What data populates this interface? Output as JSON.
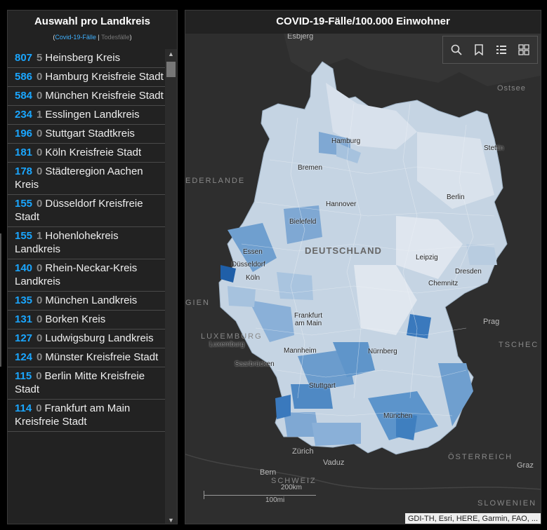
{
  "left_panel": {
    "title": "Auswahl pro Landkreis",
    "legend_open": "(",
    "legend_cases": "Covid-19-Fälle",
    "legend_sep": " | ",
    "legend_deaths": "Todesfälle",
    "legend_close": ")",
    "items": [
      {
        "cases": "807",
        "deaths": "5",
        "name": "Heinsberg Kreis"
      },
      {
        "cases": "586",
        "deaths": "0",
        "name": "Hamburg Kreisfreie Stadt"
      },
      {
        "cases": "584",
        "deaths": "0",
        "name": "München Kreisfreie Stadt"
      },
      {
        "cases": "234",
        "deaths": "1",
        "name": "Esslingen Landkreis"
      },
      {
        "cases": "196",
        "deaths": "0",
        "name": "Stuttgart Stadtkreis"
      },
      {
        "cases": "181",
        "deaths": "0",
        "name": "Köln Kreisfreie Stadt"
      },
      {
        "cases": "178",
        "deaths": "0",
        "name": "Städteregion Aachen Kreis"
      },
      {
        "cases": "155",
        "deaths": "0",
        "name": "Düsseldorf Kreisfreie Stadt"
      },
      {
        "cases": "155",
        "deaths": "1",
        "name": "Hohenlohekreis Landkreis"
      },
      {
        "cases": "140",
        "deaths": "0",
        "name": "Rhein-Neckar-Kreis Landkreis"
      },
      {
        "cases": "135",
        "deaths": "0",
        "name": "München Landkreis"
      },
      {
        "cases": "131",
        "deaths": "0",
        "name": "Borken Kreis"
      },
      {
        "cases": "127",
        "deaths": "0",
        "name": "Ludwigsburg Landkreis"
      },
      {
        "cases": "124",
        "deaths": "0",
        "name": "Münster Kreisfreie Stadt"
      },
      {
        "cases": "115",
        "deaths": "0",
        "name": "Berlin Mitte Kreisfreie Stadt"
      },
      {
        "cases": "114",
        "deaths": "0",
        "name": "Frankfurt am Main Kreisfreie Stadt"
      }
    ]
  },
  "map_panel": {
    "title": "COVID-19-Fälle/100.000 Einwohner",
    "country_label": "DEUTSCHLAND",
    "cities": [
      "Esbjerg",
      "Hamburg",
      "Bremen",
      "Hannover",
      "Bielefeld",
      "Berlin",
      "Stettin",
      "Essen",
      "Düsseldorf",
      "Köln",
      "Leipzig",
      "Dresden",
      "Chemnitz",
      "Frankfurt am Main",
      "Mannheim",
      "Nürnberg",
      "Saarbrücken",
      "Luxemburg",
      "Stuttgart",
      "München",
      "Zürich",
      "Vaduz",
      "Bern",
      "Prag",
      "Graz",
      "Ostsee"
    ],
    "countries": [
      "EDERLANDE",
      "GIEN",
      "LUXEMBURG",
      "TSCHEC",
      "SCHWEIZ",
      "ÖSTERREICH",
      "SLOWENIEN"
    ],
    "scale_km": "200km",
    "scale_mi": "100mi",
    "attribution": "GDI-TH, Esri, HERE, Garmin, FAO, ...",
    "tools": [
      "search-icon",
      "bookmark-icon",
      "legend-icon",
      "basemap-gallery-icon"
    ]
  },
  "colors": {
    "cases": "#1aa6ff",
    "deaths": "#8a8a8a",
    "accent": "#3fb1ff"
  }
}
